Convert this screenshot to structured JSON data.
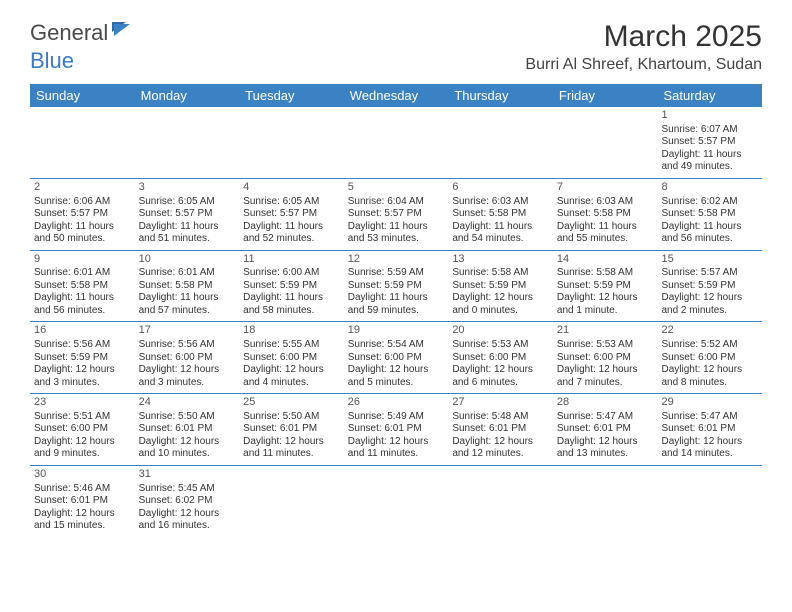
{
  "logo": {
    "part1": "General",
    "part2": "Blue"
  },
  "title": "March 2025",
  "location": "Burri Al Shreef, Khartoum, Sudan",
  "colors": {
    "header_bg": "#3b82c4",
    "header_text": "#ffffff",
    "border": "#3b82c4",
    "text": "#333333",
    "logo_gray": "#4a4a4a",
    "logo_blue": "#3b7bbf"
  },
  "dow": [
    "Sunday",
    "Monday",
    "Tuesday",
    "Wednesday",
    "Thursday",
    "Friday",
    "Saturday"
  ],
  "weeks": [
    [
      null,
      null,
      null,
      null,
      null,
      null,
      {
        "n": "1",
        "sr": "Sunrise: 6:07 AM",
        "ss": "Sunset: 5:57 PM",
        "d1": "Daylight: 11 hours",
        "d2": "and 49 minutes."
      }
    ],
    [
      {
        "n": "2",
        "sr": "Sunrise: 6:06 AM",
        "ss": "Sunset: 5:57 PM",
        "d1": "Daylight: 11 hours",
        "d2": "and 50 minutes."
      },
      {
        "n": "3",
        "sr": "Sunrise: 6:05 AM",
        "ss": "Sunset: 5:57 PM",
        "d1": "Daylight: 11 hours",
        "d2": "and 51 minutes."
      },
      {
        "n": "4",
        "sr": "Sunrise: 6:05 AM",
        "ss": "Sunset: 5:57 PM",
        "d1": "Daylight: 11 hours",
        "d2": "and 52 minutes."
      },
      {
        "n": "5",
        "sr": "Sunrise: 6:04 AM",
        "ss": "Sunset: 5:57 PM",
        "d1": "Daylight: 11 hours",
        "d2": "and 53 minutes."
      },
      {
        "n": "6",
        "sr": "Sunrise: 6:03 AM",
        "ss": "Sunset: 5:58 PM",
        "d1": "Daylight: 11 hours",
        "d2": "and 54 minutes."
      },
      {
        "n": "7",
        "sr": "Sunrise: 6:03 AM",
        "ss": "Sunset: 5:58 PM",
        "d1": "Daylight: 11 hours",
        "d2": "and 55 minutes."
      },
      {
        "n": "8",
        "sr": "Sunrise: 6:02 AM",
        "ss": "Sunset: 5:58 PM",
        "d1": "Daylight: 11 hours",
        "d2": "and 56 minutes."
      }
    ],
    [
      {
        "n": "9",
        "sr": "Sunrise: 6:01 AM",
        "ss": "Sunset: 5:58 PM",
        "d1": "Daylight: 11 hours",
        "d2": "and 56 minutes."
      },
      {
        "n": "10",
        "sr": "Sunrise: 6:01 AM",
        "ss": "Sunset: 5:58 PM",
        "d1": "Daylight: 11 hours",
        "d2": "and 57 minutes."
      },
      {
        "n": "11",
        "sr": "Sunrise: 6:00 AM",
        "ss": "Sunset: 5:59 PM",
        "d1": "Daylight: 11 hours",
        "d2": "and 58 minutes."
      },
      {
        "n": "12",
        "sr": "Sunrise: 5:59 AM",
        "ss": "Sunset: 5:59 PM",
        "d1": "Daylight: 11 hours",
        "d2": "and 59 minutes."
      },
      {
        "n": "13",
        "sr": "Sunrise: 5:58 AM",
        "ss": "Sunset: 5:59 PM",
        "d1": "Daylight: 12 hours",
        "d2": "and 0 minutes."
      },
      {
        "n": "14",
        "sr": "Sunrise: 5:58 AM",
        "ss": "Sunset: 5:59 PM",
        "d1": "Daylight: 12 hours",
        "d2": "and 1 minute."
      },
      {
        "n": "15",
        "sr": "Sunrise: 5:57 AM",
        "ss": "Sunset: 5:59 PM",
        "d1": "Daylight: 12 hours",
        "d2": "and 2 minutes."
      }
    ],
    [
      {
        "n": "16",
        "sr": "Sunrise: 5:56 AM",
        "ss": "Sunset: 5:59 PM",
        "d1": "Daylight: 12 hours",
        "d2": "and 3 minutes."
      },
      {
        "n": "17",
        "sr": "Sunrise: 5:56 AM",
        "ss": "Sunset: 6:00 PM",
        "d1": "Daylight: 12 hours",
        "d2": "and 3 minutes."
      },
      {
        "n": "18",
        "sr": "Sunrise: 5:55 AM",
        "ss": "Sunset: 6:00 PM",
        "d1": "Daylight: 12 hours",
        "d2": "and 4 minutes."
      },
      {
        "n": "19",
        "sr": "Sunrise: 5:54 AM",
        "ss": "Sunset: 6:00 PM",
        "d1": "Daylight: 12 hours",
        "d2": "and 5 minutes."
      },
      {
        "n": "20",
        "sr": "Sunrise: 5:53 AM",
        "ss": "Sunset: 6:00 PM",
        "d1": "Daylight: 12 hours",
        "d2": "and 6 minutes."
      },
      {
        "n": "21",
        "sr": "Sunrise: 5:53 AM",
        "ss": "Sunset: 6:00 PM",
        "d1": "Daylight: 12 hours",
        "d2": "and 7 minutes."
      },
      {
        "n": "22",
        "sr": "Sunrise: 5:52 AM",
        "ss": "Sunset: 6:00 PM",
        "d1": "Daylight: 12 hours",
        "d2": "and 8 minutes."
      }
    ],
    [
      {
        "n": "23",
        "sr": "Sunrise: 5:51 AM",
        "ss": "Sunset: 6:00 PM",
        "d1": "Daylight: 12 hours",
        "d2": "and 9 minutes."
      },
      {
        "n": "24",
        "sr": "Sunrise: 5:50 AM",
        "ss": "Sunset: 6:01 PM",
        "d1": "Daylight: 12 hours",
        "d2": "and 10 minutes."
      },
      {
        "n": "25",
        "sr": "Sunrise: 5:50 AM",
        "ss": "Sunset: 6:01 PM",
        "d1": "Daylight: 12 hours",
        "d2": "and 11 minutes."
      },
      {
        "n": "26",
        "sr": "Sunrise: 5:49 AM",
        "ss": "Sunset: 6:01 PM",
        "d1": "Daylight: 12 hours",
        "d2": "and 11 minutes."
      },
      {
        "n": "27",
        "sr": "Sunrise: 5:48 AM",
        "ss": "Sunset: 6:01 PM",
        "d1": "Daylight: 12 hours",
        "d2": "and 12 minutes."
      },
      {
        "n": "28",
        "sr": "Sunrise: 5:47 AM",
        "ss": "Sunset: 6:01 PM",
        "d1": "Daylight: 12 hours",
        "d2": "and 13 minutes."
      },
      {
        "n": "29",
        "sr": "Sunrise: 5:47 AM",
        "ss": "Sunset: 6:01 PM",
        "d1": "Daylight: 12 hours",
        "d2": "and 14 minutes."
      }
    ],
    [
      {
        "n": "30",
        "sr": "Sunrise: 5:46 AM",
        "ss": "Sunset: 6:01 PM",
        "d1": "Daylight: 12 hours",
        "d2": "and 15 minutes."
      },
      {
        "n": "31",
        "sr": "Sunrise: 5:45 AM",
        "ss": "Sunset: 6:02 PM",
        "d1": "Daylight: 12 hours",
        "d2": "and 16 minutes."
      },
      null,
      null,
      null,
      null,
      null
    ]
  ]
}
